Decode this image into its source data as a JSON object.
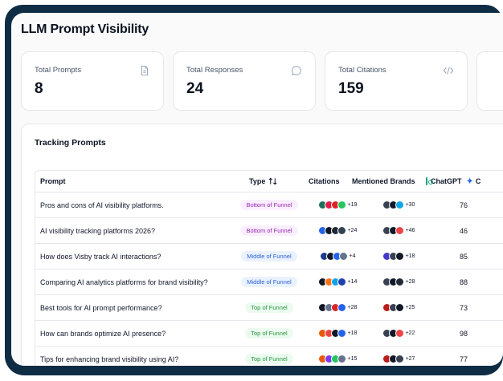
{
  "page": {
    "title": "LLM Prompt Visibility"
  },
  "stats": [
    {
      "label": "Total Prompts",
      "value": "8",
      "icon": "document-icon"
    },
    {
      "label": "Total Responses",
      "value": "24",
      "icon": "chat-bubble-icon"
    },
    {
      "label": "Total Citations",
      "value": "159",
      "icon": "code-icon"
    }
  ],
  "tracking": {
    "title": "Tracking Prompts",
    "columns": {
      "prompt": "Prompt",
      "type": "Type",
      "citations": "Citations",
      "brands": "Mentioned Brands",
      "chatgpt": "ChatGPT",
      "next": "C"
    },
    "rows": [
      {
        "prompt": "Pros and cons of AI visibility platforms.",
        "type": "Bottom of Funnel",
        "type_class": "bottom",
        "cit_more": "+19",
        "brand_more": "+30",
        "chatgpt": "76",
        "cit_colors": [
          "#1e6f5c",
          "#e11d48",
          "#dc2626",
          "#22c55e"
        ],
        "brand_colors": [
          "#374151",
          "#111827",
          "#0ea5e9"
        ]
      },
      {
        "prompt": "AI visibility tracking platforms 2026?",
        "type": "Bottom of Funnel",
        "type_class": "bottom",
        "cit_more": "+24",
        "brand_more": "+46",
        "chatgpt": "46",
        "cit_colors": [
          "#2563eb",
          "#111827",
          "#1f2937",
          "#334155"
        ],
        "brand_colors": [
          "#374151",
          "#111827",
          "#ef4444"
        ]
      },
      {
        "prompt": "How does Visby track AI interactions?",
        "type": "Middle of Funnel",
        "type_class": "middle",
        "cit_more": "+4",
        "brand_more": "+18",
        "chatgpt": "85",
        "cit_colors": [
          "#1e3a8a",
          "#111827",
          "#2563eb",
          "#64748b"
        ],
        "brand_colors": [
          "#4338ca",
          "#374151",
          "#111827"
        ]
      },
      {
        "prompt": "Comparing AI analytics platforms for brand visibility?",
        "type": "Middle of Funnel",
        "type_class": "middle",
        "cit_more": "+14",
        "brand_more": "+28",
        "chatgpt": "88",
        "cit_colors": [
          "#111827",
          "#f97316",
          "#0ea5e9",
          "#1e40af"
        ],
        "brand_colors": [
          "#374151",
          "#111827",
          "#1f2937"
        ]
      },
      {
        "prompt": "Best tools for AI prompt performance?",
        "type": "Top of Funnel",
        "type_class": "top",
        "cit_more": "+28",
        "brand_more": "+25",
        "chatgpt": "73",
        "cit_colors": [
          "#111827",
          "#64748b",
          "#dc2626",
          "#2563eb"
        ],
        "brand_colors": [
          "#b91c1c",
          "#374151",
          "#111827"
        ]
      },
      {
        "prompt": "How can brands optimize AI presence?",
        "type": "Top of Funnel",
        "type_class": "top",
        "cit_more": "+18",
        "brand_more": "+22",
        "chatgpt": "98",
        "cit_colors": [
          "#ea580c",
          "#ef4444",
          "#111827",
          "#2563eb"
        ],
        "brand_colors": [
          "#374151",
          "#111827",
          "#ef4444"
        ]
      },
      {
        "prompt": "Tips for enhancing brand visibility using AI?",
        "type": "Top of Funnel",
        "type_class": "top",
        "cit_more": "+15",
        "brand_more": "+27",
        "chatgpt": "77",
        "cit_colors": [
          "#ea580c",
          "#7c3aed",
          "#22c55e",
          "#64748b"
        ],
        "brand_colors": [
          "#b91c1c",
          "#111827",
          "#374151"
        ]
      }
    ]
  }
}
